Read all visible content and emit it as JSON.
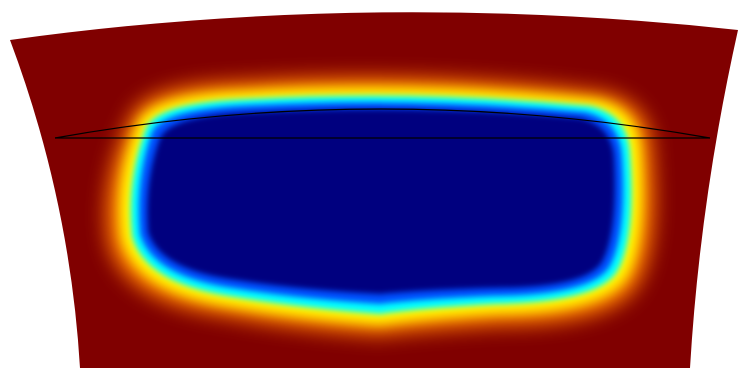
{
  "colors": {
    "background": "#ffffff",
    "outer_field": "#800000",
    "orange": "#ff7f00",
    "yellow": "#ffff00",
    "cyan": "#00ffff",
    "blue": "#0050ff",
    "core": "#00007f",
    "outline": "#000000"
  }
}
